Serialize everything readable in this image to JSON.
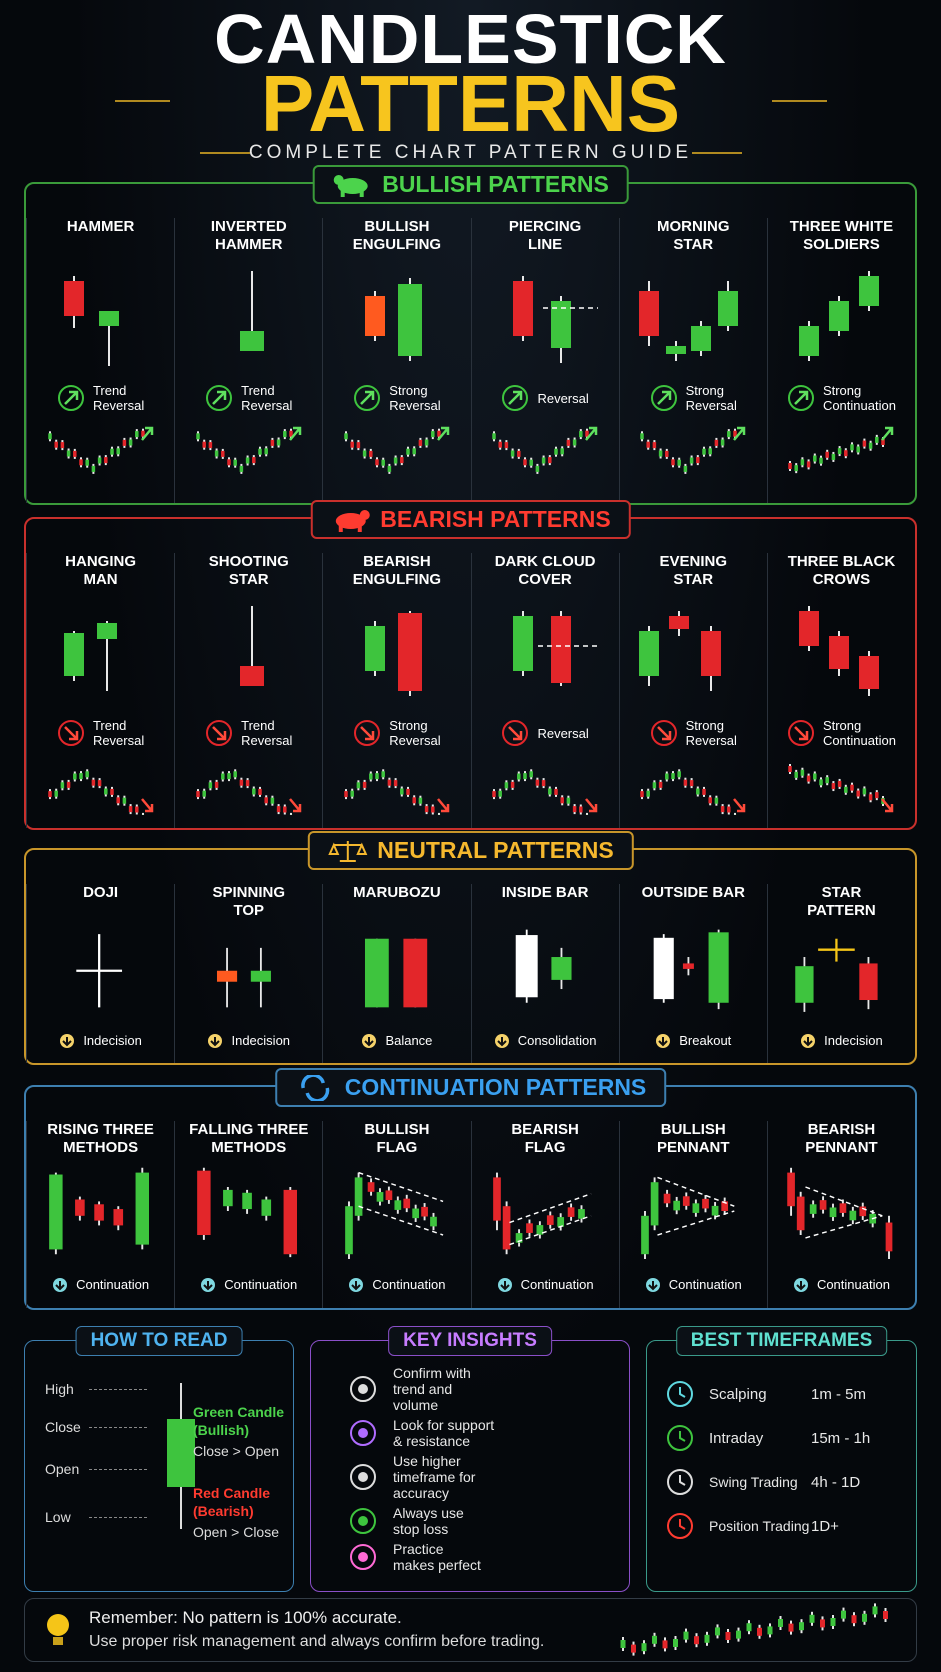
{
  "header": {
    "title_line1": "CANDLESTICK",
    "title_line2": "PATTERNS",
    "subtitle": "COMPLETE CHART PATTERN GUIDE"
  },
  "sections": [
    {
      "title": "BULLISH PATTERNS",
      "patterns": [
        {
          "name": "HAMMER",
          "note": "Trend\nReversal"
        },
        {
          "name": "INVERTED\nHAMMER",
          "note": "Trend\nReversal"
        },
        {
          "name": "BULLISH\nENGULFING",
          "note": "Strong\nReversal"
        },
        {
          "name": "PIERCING\nLINE",
          "note": "Reversal"
        },
        {
          "name": "MORNING\nSTAR",
          "note": "Strong\nReversal"
        },
        {
          "name": "THREE WHITE\nSOLDIERS",
          "note": "Strong\nContinuation"
        }
      ]
    },
    {
      "title": "BEARISH PATTERNS",
      "patterns": [
        {
          "name": "HANGING\nMAN",
          "note": "Trend\nReversal"
        },
        {
          "name": "SHOOTING\nSTAR",
          "note": "Trend\nReversal"
        },
        {
          "name": "BEARISH\nENGULFING",
          "note": "Strong\nReversal"
        },
        {
          "name": "DARK CLOUD\nCOVER",
          "note": "Reversal"
        },
        {
          "name": "EVENING\nSTAR",
          "note": "Strong\nReversal"
        },
        {
          "name": "THREE BLACK\nCROWS",
          "note": "Strong\nContinuation"
        }
      ]
    },
    {
      "title": "NEUTRAL PATTERNS",
      "patterns": [
        {
          "name": "DOJI",
          "note": "Indecision"
        },
        {
          "name": "SPINNING\nTOP",
          "note": "Indecision"
        },
        {
          "name": "MARUBOZU",
          "note": "Balance"
        },
        {
          "name": "INSIDE BAR",
          "note": "Consolidation"
        },
        {
          "name": "OUTSIDE BAR",
          "note": "Breakout"
        },
        {
          "name": "STAR\nPATTERN",
          "note": "Indecision"
        }
      ]
    },
    {
      "title": "CONTINUATION PATTERNS",
      "patterns": [
        {
          "name": "RISING THREE\nMETHODS",
          "note": "Continuation"
        },
        {
          "name": "FALLING THREE\nMETHODS",
          "note": "Continuation"
        },
        {
          "name": "BULLISH\nFLAG",
          "note": "Continuation"
        },
        {
          "name": "BEARISH\nFLAG",
          "note": "Continuation"
        },
        {
          "name": "BULLISH\nPENNANT",
          "note": "Continuation"
        },
        {
          "name": "BEARISH\nPENNANT",
          "note": "Continuation"
        }
      ]
    }
  ],
  "how_to_read": {
    "title": "HOW TO READ",
    "levels": [
      "High",
      "Close",
      "Open",
      "Low"
    ],
    "green_title": "Green Candle\n(Bullish)",
    "green_rule": "Close > Open",
    "red_title": "Red Candle\n(Bearish)",
    "red_rule": "Open > Close"
  },
  "key_insights": {
    "title": "KEY INSIGHTS",
    "items": [
      "Confirm with\ntrend and\nvolume",
      "Look for support\n& resistance",
      "Use higher\ntimeframe for\naccuracy",
      "Always use\nstop loss",
      "Practice\nmakes perfect"
    ]
  },
  "best_timeframes": {
    "title": "BEST TIMEFRAMES",
    "rows": [
      {
        "style": "Scalping",
        "range": "1m - 5m"
      },
      {
        "style": "Intraday",
        "range": "15m - 1h"
      },
      {
        "style": "Swing Trading",
        "range": "4h - 1D"
      },
      {
        "style": "Position Trading",
        "range": "1D+"
      }
    ]
  },
  "footer": {
    "line1": "Remember: No pattern is 100% accurate.",
    "line2": "Use proper risk management and always confirm before trading."
  }
}
